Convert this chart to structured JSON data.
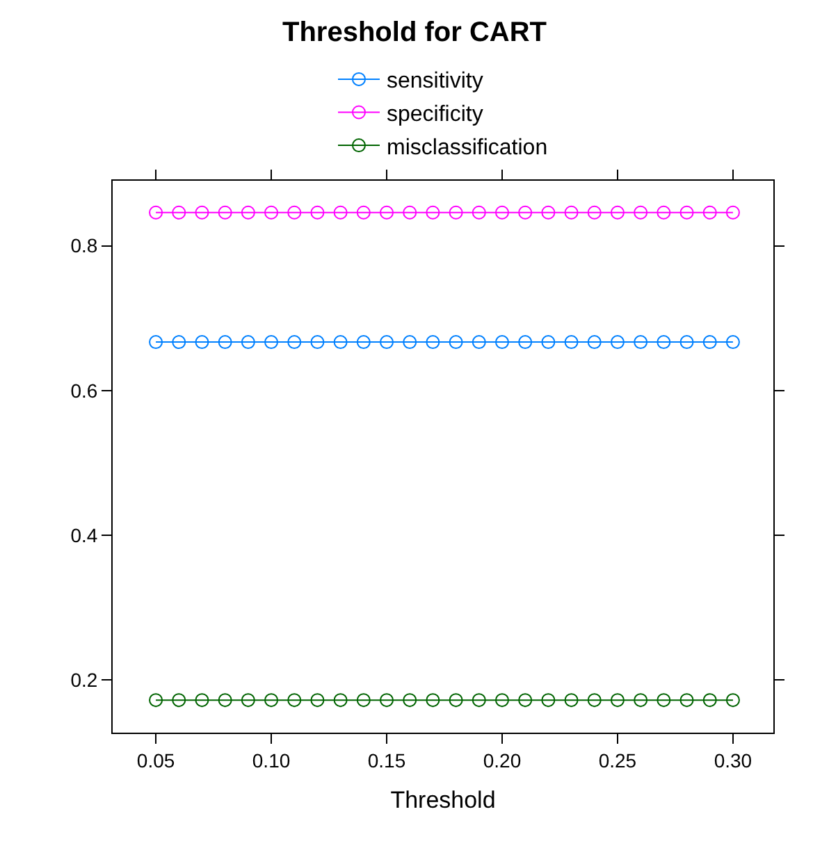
{
  "chart_data": {
    "type": "line",
    "title": "Threshold for CART",
    "xlabel": "Threshold",
    "x": [
      0.05,
      0.06,
      0.07,
      0.08,
      0.09,
      0.1,
      0.11,
      0.12,
      0.13,
      0.14,
      0.15,
      0.16,
      0.17,
      0.18,
      0.19,
      0.2,
      0.21,
      0.22,
      0.23,
      0.24,
      0.25,
      0.26,
      0.27,
      0.28,
      0.29,
      0.3
    ],
    "series": [
      {
        "name": "sensitivity",
        "color": "#0080ff",
        "values": [
          0.667,
          0.667,
          0.667,
          0.667,
          0.667,
          0.667,
          0.667,
          0.667,
          0.667,
          0.667,
          0.667,
          0.667,
          0.667,
          0.667,
          0.667,
          0.667,
          0.667,
          0.667,
          0.667,
          0.667,
          0.667,
          0.667,
          0.667,
          0.667,
          0.667,
          0.667
        ]
      },
      {
        "name": "specificity",
        "color": "#ff00ff",
        "values": [
          0.846,
          0.846,
          0.846,
          0.846,
          0.846,
          0.846,
          0.846,
          0.846,
          0.846,
          0.846,
          0.846,
          0.846,
          0.846,
          0.846,
          0.846,
          0.846,
          0.846,
          0.846,
          0.846,
          0.846,
          0.846,
          0.846,
          0.846,
          0.846,
          0.846,
          0.846
        ]
      },
      {
        "name": "misclassification",
        "color": "#006400",
        "values": [
          0.172,
          0.172,
          0.172,
          0.172,
          0.172,
          0.172,
          0.172,
          0.172,
          0.172,
          0.172,
          0.172,
          0.172,
          0.172,
          0.172,
          0.172,
          0.172,
          0.172,
          0.172,
          0.172,
          0.172,
          0.172,
          0.172,
          0.172,
          0.172,
          0.172,
          0.172
        ]
      }
    ],
    "xlim": [
      0.0313,
      0.3175
    ],
    "xticks": [
      {
        "value": 0.05,
        "label": "0.05"
      },
      {
        "value": 0.1,
        "label": "0.10"
      },
      {
        "value": 0.15,
        "label": "0.15"
      },
      {
        "value": 0.2,
        "label": "0.20"
      },
      {
        "value": 0.25,
        "label": "0.25"
      },
      {
        "value": 0.3,
        "label": "0.30"
      }
    ],
    "ylim": [
      0.127,
      0.89
    ],
    "yticks": [
      0.2,
      0.4,
      0.6,
      0.8
    ],
    "marker": "circle",
    "line_style": "solid",
    "legend": "top"
  }
}
